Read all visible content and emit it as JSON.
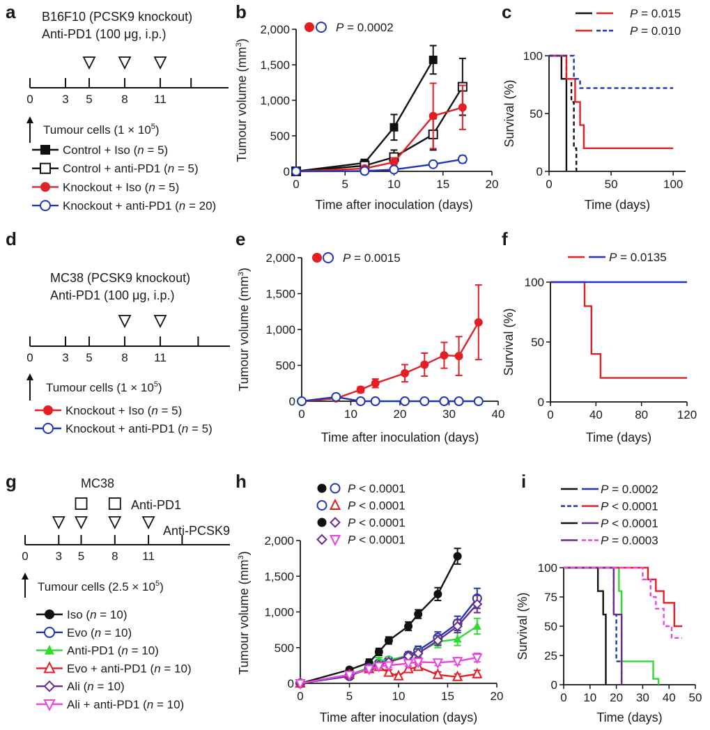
{
  "panel_letters": [
    "a",
    "b",
    "c",
    "d",
    "e",
    "f",
    "g",
    "h",
    "i"
  ],
  "colors": {
    "black": "#111111",
    "red": "#e31e25",
    "blue": "#1f35b5",
    "green": "#2edb2e",
    "purple": "#6a2a8a",
    "magenta": "#e845e0"
  },
  "panel_a": {
    "title_lines": [
      "B16F10 (PCSK9 knockout)",
      "Anti-PD1 (100 μg, i.p.)"
    ],
    "ticks": [
      "0",
      "3",
      "5",
      "8",
      "11"
    ],
    "tumour_text": "Tumour cells (1 × 10",
    "tumour_sup": "5",
    "tumour_close": ")",
    "legend": [
      {
        "text": "Control + Iso (",
        "n": "n",
        "rest": " = 5)",
        "color": "#111111",
        "marker": "filled-square"
      },
      {
        "text": "Control + anti-PD1 (",
        "n": "n",
        "rest": " = 5)",
        "color": "#111111",
        "marker": "open-square"
      },
      {
        "text": "Knockout + Iso (",
        "n": "n",
        "rest": " = 5)",
        "color": "#e31e25",
        "marker": "filled-circle"
      },
      {
        "text": "Knockout + anti-PD1 (",
        "n": "n",
        "rest": " = 20)",
        "color": "#1f35b5",
        "marker": "open-circle"
      }
    ]
  },
  "panel_d": {
    "title_lines": [
      "MC38 (PCSK9 knockout)",
      "Anti-PD1 (100 μg, i.p.)"
    ],
    "ticks": [
      "0",
      "3",
      "5",
      "8",
      "11"
    ],
    "tumour_text": "Tumour cells (1 × 10",
    "tumour_sup": "5",
    "tumour_close": ")",
    "legend": [
      {
        "text": "Knockout + Iso (",
        "n": "n",
        "rest": " = 5)",
        "color": "#e31e25",
        "marker": "filled-circle"
      },
      {
        "text": "Knockout + anti-PD1 (",
        "n": "n",
        "rest": " = 5)",
        "color": "#1f35b5",
        "marker": "open-circle"
      }
    ]
  },
  "panel_g": {
    "title": "MC38",
    "anti_pd1_label": "Anti-PD1",
    "anti_pcsk9_label": "Anti-PCSK9",
    "ticks": [
      "0",
      "3",
      "5",
      "8",
      "11"
    ],
    "tumour_text": "Tumour cells (2.5 × 10",
    "tumour_sup": "5",
    "tumour_close": ")",
    "legend": [
      {
        "text": "Iso (",
        "n": "n",
        "rest": " = 10)",
        "color": "#111111",
        "marker": "filled-circle"
      },
      {
        "text": "Evo (",
        "n": "n",
        "rest": " = 10)",
        "color": "#1f35b5",
        "marker": "open-circle"
      },
      {
        "text": "Anti-PD1 (",
        "n": "n",
        "rest": " = 10)",
        "color": "#2edb2e",
        "marker": "filled-triangle"
      },
      {
        "text": "Evo + anti-PD1 (",
        "n": "n",
        "rest": " = 10)",
        "color": "#e31e25",
        "marker": "open-triangle"
      },
      {
        "text": "Ali (",
        "n": "n",
        "rest": " = 10)",
        "color": "#6a2a8a",
        "marker": "open-diamond"
      },
      {
        "text": "Ali + anti-PD1 (",
        "n": "n",
        "rest": " = 10)",
        "color": "#e845e0",
        "marker": "open-down-triangle"
      }
    ]
  },
  "chart_data": [
    {
      "panel": "b",
      "type": "line",
      "xlabel": "Time after inoculation (days)",
      "ylabel": "Tumour volume (mm3)",
      "xlim": [
        0,
        20
      ],
      "ylim": [
        0,
        2000
      ],
      "xticks": [
        "0",
        "5",
        "10",
        "15",
        "20"
      ],
      "yticks": [
        "0",
        "500",
        "1,000",
        "1,500",
        "2,000"
      ],
      "pvalue": "P = 0.0002",
      "series": [
        {
          "x": [
            0,
            7,
            10,
            14
          ],
          "values": [
            0,
            120,
            620,
            1570
          ],
          "errors": [
            0,
            40,
            180,
            200
          ],
          "color": "#111111",
          "marker": "filled-square"
        },
        {
          "x": [
            0,
            7,
            10,
            14,
            17
          ],
          "values": [
            0,
            80,
            200,
            520,
            1190
          ],
          "errors": [
            0,
            30,
            100,
            220,
            400
          ],
          "color": "#111111",
          "marker": "open-square"
        },
        {
          "x": [
            0,
            7,
            10,
            14,
            17
          ],
          "values": [
            0,
            40,
            130,
            780,
            900
          ],
          "errors": [
            0,
            20,
            60,
            460,
            310
          ],
          "color": "#e31e25",
          "marker": "filled-circle"
        },
        {
          "x": [
            0,
            7,
            10,
            14,
            17
          ],
          "values": [
            0,
            5,
            25,
            100,
            170
          ],
          "errors": [
            0,
            5,
            10,
            20,
            50
          ],
          "color": "#1f35b5",
          "marker": "open-circle"
        }
      ]
    },
    {
      "panel": "c",
      "type": "line",
      "xlabel": "Time (days)",
      "ylabel": "Survival (%)",
      "xlim": [
        0,
        110
      ],
      "ylim": [
        0,
        100
      ],
      "xticks": [
        "0",
        "50",
        "100"
      ],
      "yticks": [
        "0",
        "50",
        "100"
      ],
      "pvalues": [
        "P = 0.015",
        "P = 0.010"
      ],
      "series": [
        {
          "x": [
            0,
            10,
            10,
            14,
            14
          ],
          "values": [
            100,
            100,
            80,
            80,
            0
          ],
          "color": "#111111",
          "style": "solid"
        },
        {
          "x": [
            0,
            14,
            14,
            18,
            18,
            20,
            20,
            22,
            22
          ],
          "values": [
            100,
            100,
            80,
            80,
            60,
            60,
            20,
            20,
            0
          ],
          "color": "#111111",
          "style": "dashed"
        },
        {
          "x": [
            0,
            14,
            14,
            21,
            21,
            25,
            25,
            28,
            28,
            100
          ],
          "values": [
            100,
            100,
            80,
            80,
            60,
            60,
            40,
            40,
            20,
            20
          ],
          "color": "#e31e25",
          "style": "solid"
        },
        {
          "x": [
            0,
            20,
            20,
            25,
            25,
            100
          ],
          "values": [
            100,
            100,
            80,
            80,
            72,
            72
          ],
          "color": "#1f35b5",
          "style": "dashed"
        }
      ]
    },
    {
      "panel": "e",
      "type": "line",
      "xlabel": "Time after inoculation (days)",
      "ylabel": "Tumour volume (mm3)",
      "xlim": [
        0,
        40
      ],
      "ylim": [
        0,
        2000
      ],
      "xticks": [
        "0",
        "10",
        "20",
        "30",
        "40"
      ],
      "yticks": [
        "0",
        "500",
        "1,000",
        "1,500",
        "2,000"
      ],
      "pvalue": "P = 0.0015",
      "series": [
        {
          "x": [
            0,
            7,
            12,
            15,
            21,
            25,
            29,
            32,
            36
          ],
          "values": [
            0,
            40,
            160,
            250,
            390,
            510,
            640,
            630,
            1100
          ],
          "errors": [
            0,
            10,
            40,
            60,
            120,
            160,
            180,
            270,
            520
          ],
          "color": "#e31e25",
          "marker": "filled-circle"
        },
        {
          "x": [
            0,
            7,
            12,
            15,
            21,
            25,
            29,
            32,
            36
          ],
          "values": [
            0,
            60,
            0,
            0,
            0,
            0,
            0,
            0,
            0
          ],
          "errors": [
            0,
            0,
            0,
            0,
            0,
            0,
            0,
            0,
            0
          ],
          "color": "#1f35b5",
          "marker": "open-circle"
        }
      ]
    },
    {
      "panel": "f",
      "type": "line",
      "xlabel": "Time (days)",
      "ylabel": "Survival (%)",
      "xlim": [
        0,
        120
      ],
      "ylim": [
        0,
        100
      ],
      "xticks": [
        "0",
        "40",
        "80",
        "120"
      ],
      "yticks": [
        "0",
        "50",
        "100"
      ],
      "pvalue": "P = 0.0135",
      "series": [
        {
          "x": [
            0,
            30,
            30,
            36,
            36,
            44,
            44,
            120
          ],
          "values": [
            100,
            100,
            80,
            80,
            40,
            40,
            20,
            20
          ],
          "color": "#e31e25",
          "style": "solid"
        },
        {
          "x": [
            0,
            120
          ],
          "values": [
            100,
            100
          ],
          "color": "#1f35b5",
          "style": "solid"
        }
      ]
    },
    {
      "panel": "h",
      "type": "line",
      "xlabel": "Time after inoculation (days)",
      "ylabel": "Tumour volume (mm3)",
      "xlim": [
        0,
        20
      ],
      "ylim": [
        0,
        2000
      ],
      "xticks": [
        "0",
        "5",
        "10",
        "15",
        "20"
      ],
      "yticks": [
        "0",
        "500",
        "1,000",
        "1,500",
        "2,000"
      ],
      "pvalues": [
        "P < 0.0001",
        "P < 0.0001",
        "P < 0.0001",
        "P < 0.0001"
      ],
      "series": [
        {
          "x": [
            0,
            5,
            7,
            8,
            9,
            11,
            12,
            14,
            16
          ],
          "values": [
            0,
            190,
            290,
            440,
            600,
            800,
            970,
            1250,
            1780
          ],
          "errors": [
            0,
            30,
            50,
            50,
            50,
            60,
            60,
            90,
            110
          ],
          "color": "#111111",
          "marker": "filled-circle"
        },
        {
          "x": [
            0,
            5,
            7,
            8,
            9,
            11,
            12,
            14,
            16,
            18
          ],
          "values": [
            0,
            100,
            220,
            280,
            320,
            390,
            460,
            640,
            840,
            1190
          ],
          "errors": [
            0,
            20,
            30,
            30,
            40,
            50,
            60,
            80,
            100,
            140
          ],
          "color": "#1f35b5",
          "marker": "open-circle"
        },
        {
          "x": [
            0,
            5,
            7,
            8,
            9,
            11,
            12,
            14,
            16,
            18
          ],
          "values": [
            0,
            120,
            220,
            320,
            330,
            380,
            430,
            580,
            620,
            800
          ],
          "errors": [
            0,
            20,
            30,
            40,
            40,
            50,
            60,
            80,
            90,
            110
          ],
          "color": "#2edb2e",
          "marker": "filled-triangle"
        },
        {
          "x": [
            0,
            5,
            7,
            8,
            9,
            10,
            11,
            12,
            14,
            16,
            18
          ],
          "values": [
            0,
            120,
            200,
            230,
            150,
            100,
            200,
            230,
            120,
            90,
            130
          ],
          "errors": [
            0,
            20,
            30,
            40,
            40,
            30,
            40,
            40,
            40,
            40,
            50
          ],
          "color": "#e31e25",
          "marker": "open-triangle"
        },
        {
          "x": [
            0,
            5,
            7,
            8,
            9,
            11,
            12,
            14,
            16,
            18
          ],
          "values": [
            0,
            110,
            200,
            260,
            300,
            380,
            420,
            600,
            800,
            1110
          ],
          "errors": [
            0,
            20,
            30,
            30,
            40,
            50,
            60,
            70,
            90,
            120
          ],
          "color": "#6a2a8a",
          "marker": "open-diamond"
        },
        {
          "x": [
            0,
            5,
            7,
            8,
            9,
            11,
            12,
            14,
            16,
            18
          ],
          "values": [
            0,
            120,
            200,
            240,
            250,
            280,
            300,
            290,
            310,
            360
          ],
          "errors": [
            0,
            20,
            30,
            30,
            30,
            40,
            40,
            40,
            50,
            60
          ],
          "color": "#e845e0",
          "marker": "open-down-triangle"
        }
      ]
    },
    {
      "panel": "i",
      "type": "line",
      "xlabel": "Time (days)",
      "ylabel": "Survival (%)",
      "xlim": [
        0,
        50
      ],
      "ylim": [
        0,
        100
      ],
      "xticks": [
        "0",
        "10",
        "20",
        "30",
        "40",
        "50"
      ],
      "yticks": [
        "0",
        "25",
        "50",
        "75",
        "100"
      ],
      "pvalues": [
        "P = 0.0002",
        "P < 0.0001",
        "P < 0.0001",
        "P = 0.0003"
      ],
      "series": [
        {
          "x": [
            0,
            13,
            13,
            15,
            15,
            16,
            16
          ],
          "values": [
            100,
            100,
            80,
            80,
            60,
            60,
            0
          ],
          "color": "#111111",
          "style": "solid"
        },
        {
          "x": [
            0,
            19,
            19,
            20,
            20,
            22,
            22
          ],
          "values": [
            100,
            100,
            60,
            60,
            20,
            20,
            0
          ],
          "color": "#1f35b5",
          "style": "dashed"
        },
        {
          "x": [
            0,
            21,
            21,
            22,
            22,
            30,
            30,
            34,
            34,
            36,
            36
          ],
          "values": [
            100,
            100,
            80,
            80,
            20,
            20,
            20,
            20,
            5,
            5,
            0
          ],
          "color": "#2edb2e",
          "style": "solid"
        },
        {
          "x": [
            0,
            32,
            32,
            35,
            35,
            38,
            38,
            42,
            42,
            45
          ],
          "values": [
            100,
            100,
            90,
            90,
            80,
            80,
            70,
            70,
            50,
            50
          ],
          "color": "#e31e25",
          "style": "solid"
        },
        {
          "x": [
            0,
            19,
            19,
            22,
            22
          ],
          "values": [
            100,
            100,
            60,
            60,
            0
          ],
          "color": "#6a2a8a",
          "style": "solid"
        },
        {
          "x": [
            0,
            30,
            30,
            33,
            33,
            35,
            35,
            38,
            38,
            41,
            41,
            45
          ],
          "values": [
            100,
            100,
            90,
            90,
            75,
            75,
            65,
            65,
            50,
            50,
            40,
            40
          ],
          "color": "#e845e0",
          "style": "dashed"
        }
      ]
    }
  ]
}
